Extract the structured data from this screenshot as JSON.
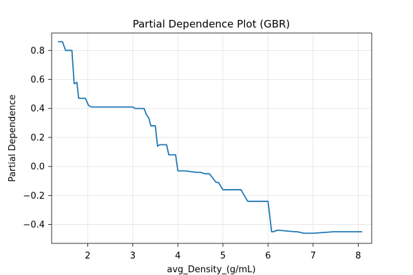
{
  "chart_data": {
    "type": "line",
    "title": "Partial Dependence Plot (GBR)",
    "xlabel": "avg_Density_(g/mL)",
    "ylabel": "Partial Dependence",
    "xlim": [
      1.2,
      8.3
    ],
    "ylim": [
      -0.53,
      0.92
    ],
    "grid": true,
    "xticks": [
      2,
      3,
      4,
      5,
      6,
      7,
      8
    ],
    "yticks": [
      -0.4,
      -0.2,
      0.0,
      0.2,
      0.4,
      0.6,
      0.8
    ],
    "xtick_labels": [
      "2",
      "3",
      "4",
      "5",
      "6",
      "7",
      "8"
    ],
    "ytick_labels": [
      "−0.4",
      "−0.2",
      "0.0",
      "0.2",
      "0.4",
      "0.6",
      "0.8"
    ],
    "series": [
      {
        "color": "#1f77b4",
        "x": [
          1.35,
          1.44,
          1.51,
          1.58,
          1.65,
          1.7,
          1.76,
          1.8,
          1.88,
          1.95,
          2.02,
          2.08,
          2.15,
          2.6,
          2.65,
          3.0,
          3.05,
          3.25,
          3.3,
          3.36,
          3.4,
          3.45,
          3.5,
          3.55,
          3.6,
          3.67,
          3.75,
          3.8,
          3.87,
          3.95,
          4.0,
          4.05,
          4.15,
          4.4,
          4.5,
          4.6,
          4.7,
          4.85,
          4.9,
          5.0,
          5.1,
          5.4,
          5.55,
          5.7,
          5.85,
          6.0,
          6.08,
          6.12,
          6.2,
          6.25,
          6.6,
          6.65,
          6.8,
          6.85,
          7.0,
          7.45,
          7.5,
          8.08
        ],
        "y": [
          0.86,
          0.86,
          0.8,
          0.8,
          0.8,
          0.57,
          0.58,
          0.47,
          0.47,
          0.47,
          0.42,
          0.41,
          0.41,
          0.41,
          0.41,
          0.41,
          0.4,
          0.4,
          0.36,
          0.33,
          0.28,
          0.28,
          0.28,
          0.14,
          0.15,
          0.15,
          0.15,
          0.08,
          0.08,
          0.08,
          -0.03,
          -0.03,
          -0.03,
          -0.04,
          -0.04,
          -0.05,
          -0.05,
          -0.11,
          -0.11,
          -0.16,
          -0.16,
          -0.16,
          -0.24,
          -0.24,
          -0.24,
          -0.24,
          -0.45,
          -0.45,
          -0.44,
          -0.44,
          -0.45,
          -0.45,
          -0.46,
          -0.46,
          -0.46,
          -0.45,
          -0.45,
          -0.45
        ]
      }
    ]
  }
}
